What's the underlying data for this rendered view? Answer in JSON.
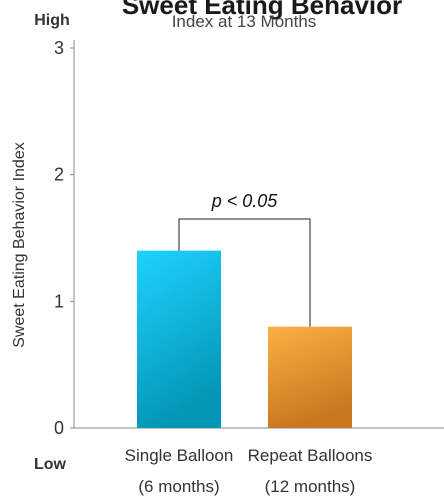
{
  "chart_data": {
    "type": "bar",
    "title": "Sweet Eating Behavior",
    "subtitle": "Index at 13 Months",
    "ylabel": "Sweet Eating Behavior Index",
    "ylim": [
      0,
      3
    ],
    "yticks": [
      "0",
      "1",
      "2",
      "3"
    ],
    "y_high_label": "High",
    "y_low_label": "Low",
    "categories": [
      {
        "line1": "Single Balloon",
        "line2": "(6 months)"
      },
      {
        "line1": "Repeat Balloons",
        "line2": "(12 months)"
      }
    ],
    "values": [
      1.4,
      0.8
    ],
    "bar_colors": [
      {
        "top": "#1ed2ff",
        "bottom": "#0396b5"
      },
      {
        "top": "#fbb043",
        "bottom": "#c7781f"
      }
    ],
    "significance": "p < 0.05",
    "significance_y": 1.65
  }
}
